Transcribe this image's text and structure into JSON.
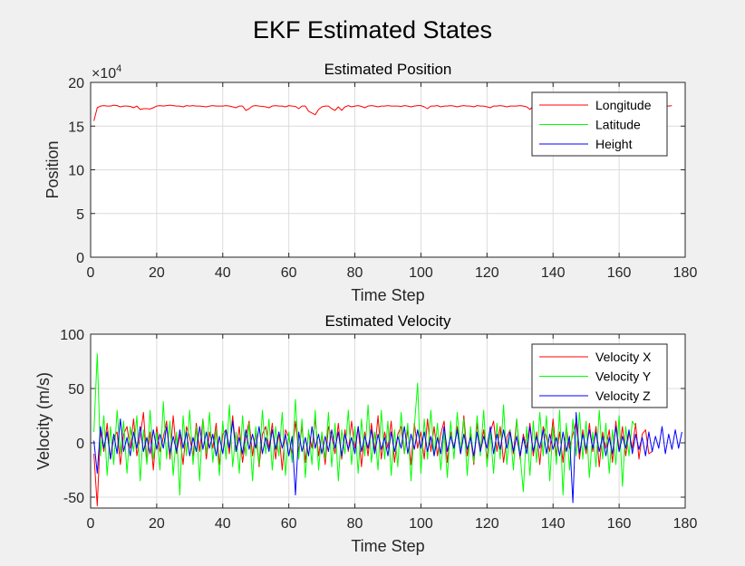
{
  "figure_title": "EKF Estimated States",
  "chart_data": [
    {
      "type": "line",
      "title": "Estimated Position",
      "xlabel": "Time Step",
      "ylabel": "Position",
      "exponent_base": "×10",
      "exponent_power": "4",
      "xlim": [
        0,
        180
      ],
      "ylim": [
        0,
        20
      ],
      "xticks": [
        "0",
        "20",
        "40",
        "60",
        "80",
        "100",
        "120",
        "140",
        "160",
        "180"
      ],
      "yticks": [
        "0",
        "5",
        "10",
        "15",
        "20"
      ],
      "grid": true,
      "legend_position": "top-right",
      "x_start": 1,
      "x_step": 1,
      "series": [
        {
          "name": "Longitude",
          "color": "#ff0000",
          "values": [
            15.6,
            17.1,
            17.3,
            17.35,
            17.3,
            17.3,
            17.4,
            17.35,
            17.2,
            17.3,
            17.3,
            17.25,
            17.1,
            17.3,
            16.9,
            17.0,
            17.0,
            16.95,
            17.1,
            17.3,
            17.35,
            17.3,
            17.35,
            17.4,
            17.35,
            17.3,
            17.3,
            17.2,
            17.35,
            17.3,
            17.35,
            17.3,
            17.3,
            17.25,
            17.2,
            17.3,
            17.35,
            17.3,
            17.3,
            17.3,
            17.35,
            17.3,
            17.2,
            17.1,
            17.3,
            17.3,
            16.8,
            17.0,
            17.3,
            17.35,
            17.3,
            17.25,
            17.2,
            17.1,
            17.3,
            17.35,
            17.3,
            17.3,
            17.2,
            17.35,
            17.3,
            17.25,
            17.0,
            17.3,
            17.3,
            16.7,
            16.5,
            16.3,
            16.9,
            17.2,
            17.3,
            17.3,
            17.0,
            16.8,
            17.2,
            16.8,
            17.2,
            17.35,
            17.2,
            17.3,
            17.35,
            17.25,
            17.1,
            17.3,
            17.35,
            17.3,
            17.2,
            17.3,
            17.3,
            17.35,
            17.3,
            17.3,
            17.3,
            17.25,
            17.35,
            17.3,
            17.2,
            17.3,
            17.35,
            17.35,
            17.2,
            17.0,
            17.3,
            17.3,
            17.35,
            17.2,
            17.3,
            17.3,
            17.35,
            17.3,
            17.2,
            17.3,
            17.35,
            17.3,
            17.3,
            17.2,
            17.35,
            17.3,
            17.3,
            17.2,
            17.1,
            17.3,
            17.3,
            17.35,
            17.3,
            17.2,
            17.3,
            17.3,
            17.3,
            17.35,
            17.3,
            17.2,
            16.9,
            17.3,
            17.35,
            17.3,
            17.3,
            17.2,
            17.35,
            17.3,
            17.35,
            17.3,
            17.3,
            17.25,
            17.35,
            17.3,
            17.3,
            17.3,
            17.35,
            17.3,
            17.2,
            17.3,
            17.35,
            17.3,
            17.3,
            17.3,
            17.25,
            17.35,
            17.3,
            17.3,
            17.3,
            17.35,
            17.3,
            17.3,
            17.25,
            17.35,
            17.3,
            17.3,
            17.3,
            17.35,
            17.3,
            17.3,
            17.35,
            17.3,
            17.3,
            17.35
          ]
        },
        {
          "name": "Latitude",
          "color": "#00ff00",
          "values": [
            0.005,
            0.005,
            0.005,
            0.005,
            0.005,
            0.005,
            0.005,
            0.005,
            0.005,
            0.005,
            0.005,
            0.005,
            0.005,
            0.005,
            0.005,
            0.005,
            0.005,
            0.005,
            0.005,
            0.005,
            0.005,
            0.005,
            0.005,
            0.005,
            0.005,
            0.005,
            0.005,
            0.005,
            0.005,
            0.005,
            0.005,
            0.005,
            0.005,
            0.005,
            0.005,
            0.005,
            0.005,
            0.005,
            0.005,
            0.005
          ]
        },
        {
          "name": "Height",
          "color": "#0000ff",
          "values": [
            0.005,
            0.005,
            0.005,
            0.005,
            0.005,
            0.005,
            0.005,
            0.005,
            0.005,
            0.005,
            0.005,
            0.005,
            0.005,
            0.005,
            0.005,
            0.005,
            0.005,
            0.005,
            0.005,
            0.005,
            0.005,
            0.005,
            0.005,
            0.005,
            0.005,
            0.005,
            0.005,
            0.005,
            0.005,
            0.005,
            0.005,
            0.005,
            0.005,
            0.005,
            0.005,
            0.005,
            0.005,
            0.005,
            0.005,
            0.005
          ]
        }
      ]
    },
    {
      "type": "line",
      "title": "Estimated Velocity",
      "xlabel": "Time Step",
      "ylabel": "Velocity (m/s)",
      "xlim": [
        0,
        180
      ],
      "ylim": [
        -60,
        100
      ],
      "xticks": [
        "0",
        "20",
        "40",
        "60",
        "80",
        "100",
        "120",
        "140",
        "160",
        "180"
      ],
      "yticks": [
        "-50",
        "0",
        "50",
        "100"
      ],
      "ytick_values": [
        -50,
        0,
        50,
        100
      ],
      "grid": true,
      "legend_position": "top-right",
      "x_start": 1,
      "x_step": 1,
      "series": [
        {
          "name": "Velocity X",
          "color": "#ff0000",
          "values": [
            -10,
            -58,
            12,
            -8,
            18,
            -15,
            5,
            10,
            -20,
            8,
            15,
            -5,
            22,
            -12,
            6,
            28,
            -18,
            10,
            -25,
            15,
            -8,
            5,
            20,
            -15,
            25,
            -10,
            8,
            -20,
            15,
            5,
            -12,
            18,
            -8,
            22,
            -15,
            10,
            -5,
            18,
            -20,
            8,
            12,
            -10,
            25,
            -8,
            15,
            -18,
            5,
            20,
            -12,
            10,
            -22,
            8,
            15,
            -5,
            18,
            -15,
            10,
            -25,
            12,
            5,
            -10,
            20,
            -8,
            15,
            -18,
            10,
            -5,
            22,
            -12,
            8,
            -20,
            15,
            5,
            -10,
            18,
            -15,
            12,
            -8,
            20,
            -5,
            15,
            -22,
            10,
            -12,
            18,
            -8,
            25,
            -15,
            10,
            -5,
            20,
            -18,
            8,
            15,
            -10,
            12,
            -20,
            18,
            -5,
            10,
            -15,
            22,
            -8,
            15,
            -12,
            8,
            20,
            -18,
            10,
            -5,
            15,
            -10,
            25,
            -12,
            8,
            -20,
            18,
            -5,
            12,
            -15,
            10,
            20,
            -8,
            15,
            -18,
            5,
            12,
            -10,
            22,
            -15,
            8,
            -5,
            18,
            -12,
            10,
            -20,
            15,
            5,
            -8,
            22,
            -12,
            10,
            -18,
            15,
            -5,
            8,
            20,
            -15,
            12,
            -10,
            18,
            -8,
            15,
            -22,
            10,
            -5,
            12,
            -18,
            20,
            -8,
            15,
            -12,
            10,
            -5,
            18,
            -15,
            8,
            12,
            -10,
            -8
          ]
        },
        {
          "name": "Velocity Y",
          "color": "#00ff00",
          "values": [
            10,
            82,
            -12,
            25,
            -30,
            15,
            -20,
            30,
            -10,
            20,
            -28,
            15,
            -8,
            25,
            -35,
            12,
            -20,
            30,
            -15,
            10,
            -25,
            38,
            -15,
            20,
            -30,
            10,
            -48,
            25,
            -12,
            30,
            -20,
            15,
            -35,
            22,
            -10,
            28,
            -18,
            12,
            -30,
            20,
            -15,
            35,
            -22,
            10,
            -28,
            25,
            -12,
            18,
            -35,
            15,
            -20,
            30,
            -10,
            22,
            -25,
            15,
            -12,
            28,
            -30,
            10,
            -18,
            40,
            -15,
            22,
            -32,
            12,
            -20,
            30,
            -25,
            10,
            -15,
            28,
            -22,
            18,
            -35,
            12,
            -10,
            30,
            -20,
            15,
            -28,
            22,
            -12,
            35,
            -18,
            10,
            -25,
            30,
            -15,
            20,
            -30,
            12,
            -22,
            28,
            -10,
            18,
            -35,
            15,
            55,
            -28,
            22,
            -15,
            30,
            -12,
            18,
            -25,
            10,
            -32,
            20,
            -15,
            28,
            -10,
            22,
            -30,
            15,
            -18,
            25,
            -12,
            30,
            -22,
            10,
            -28,
            18,
            -15,
            35,
            -20,
            12,
            -25,
            22,
            -10,
            -45,
            15,
            -30,
            20,
            -18,
            28,
            -12,
            25,
            -35,
            15,
            -20,
            30,
            -48,
            18,
            -25,
            22,
            -12,
            28,
            -15,
            20,
            -32,
            10,
            -22,
            30,
            -15,
            18,
            -28,
            12,
            -20,
            25,
            -40,
            15,
            -12,
            20,
            15
          ]
        },
        {
          "name": "Velocity Z",
          "color": "#0000ff",
          "values": [
            2,
            -28,
            15,
            -5,
            10,
            -15,
            8,
            -10,
            22,
            -8,
            5,
            -12,
            10,
            -5,
            15,
            -8,
            5,
            -10,
            12,
            -6,
            8,
            -5,
            15,
            -10,
            6,
            -8,
            12,
            -5,
            10,
            -12,
            5,
            -8,
            15,
            -6,
            10,
            -5,
            8,
            -12,
            6,
            -10,
            12,
            -5,
            20,
            -8,
            5,
            -10,
            12,
            -6,
            8,
            -5,
            15,
            -10,
            5,
            -8,
            12,
            -6,
            10,
            -5,
            8,
            -12,
            6,
            -48,
            10,
            -8,
            5,
            -12,
            15,
            -5,
            8,
            -10,
            6,
            -8,
            12,
            -5,
            10,
            -12,
            8,
            -6,
            5,
            -10,
            15,
            -8,
            6,
            -5,
            12,
            -10,
            8,
            -6,
            5,
            -12,
            10,
            -8,
            6,
            -5,
            15,
            -10,
            8,
            -6,
            12,
            -5,
            10,
            -8,
            6,
            -12,
            5,
            -10,
            15,
            -8,
            6,
            -5,
            12,
            -10,
            8,
            -6,
            5,
            -12,
            10,
            -8,
            6,
            -5,
            15,
            -10,
            8,
            -6,
            12,
            -5,
            10,
            -8,
            6,
            -12,
            5,
            -10,
            15,
            -8,
            6,
            -5,
            12,
            -10,
            8,
            -6,
            5,
            -12,
            10,
            -8,
            6,
            -55,
            28,
            -10,
            8,
            -6,
            12,
            -5,
            10,
            -8,
            6,
            -12,
            5,
            -10,
            15,
            -8,
            6,
            -5,
            12,
            -10,
            8,
            -6,
            5,
            -12,
            10,
            -8,
            6,
            -5,
            15,
            -10,
            8,
            -6,
            12,
            -5,
            10
          ]
        }
      ]
    }
  ]
}
